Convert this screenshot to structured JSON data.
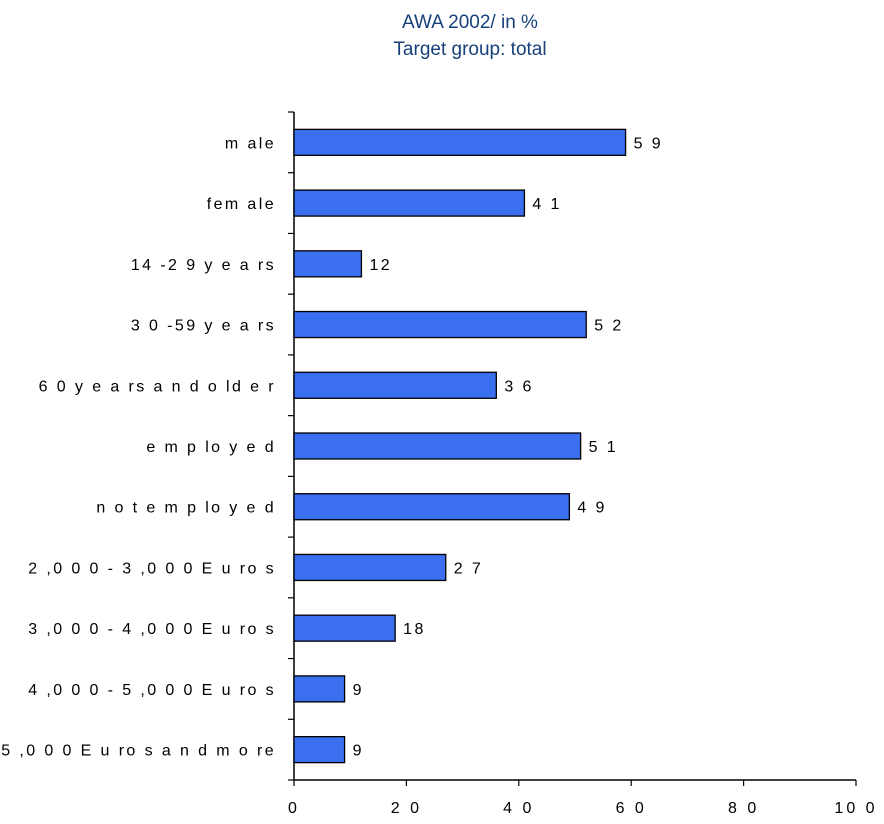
{
  "chart_data": {
    "type": "bar",
    "orientation": "horizontal",
    "title": "AWA 2002/ in %",
    "subtitle": "Target group: total",
    "categories": [
      "m ale",
      "fem ale",
      "14 -2 9  y e a rs",
      "3 0 -59  y e a rs",
      "6 0  y e a rs  a n d  o ld e r",
      "e m p lo y e d",
      "n o t e m p lo y e d",
      "2 ,0 0 0  -  3 ,0 0 0  E u ro s",
      "3 ,0 0 0  -  4 ,0 0 0  E u ro s",
      "4 ,0 0 0  -  5 ,0 0 0  E u ro s",
      "5 ,0 0 0  E u ro s  a n d  m o re"
    ],
    "values": [
      59,
      41,
      12,
      52,
      36,
      51,
      49,
      27,
      18,
      9,
      9
    ],
    "value_labels": [
      "5 9",
      "4 1",
      "12",
      "5 2",
      "3 6",
      "5 1",
      "4 9",
      "2 7",
      "18",
      "9",
      "9"
    ],
    "xlim": [
      0,
      100
    ],
    "x_ticks": [
      0,
      20,
      40,
      60,
      80,
      100
    ],
    "x_tick_labels": [
      "0",
      "2 0",
      "4 0",
      "6 0",
      "8 0",
      "10 0"
    ],
    "xlabel": "",
    "ylabel": "",
    "grid": false,
    "legend": "none",
    "colors": {
      "bar_fill": "#3a6ff0",
      "bar_stroke": "#000000",
      "title": "#17407a",
      "axis": "#000000"
    }
  }
}
